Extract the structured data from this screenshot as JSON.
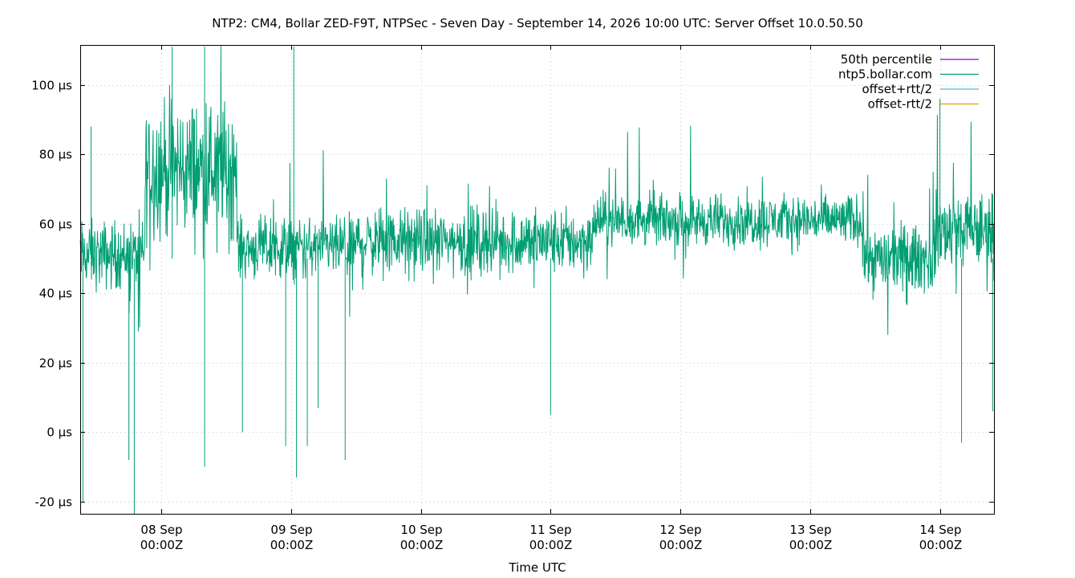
{
  "chart_data": {
    "type": "line",
    "title": "NTP2: CM4, Bollar ZED-F9T, NTPSec - Seven Day - September 14, 2026 10:00 UTC: Server Offset 10.0.50.50",
    "xlabel": "Time UTC",
    "ylabel": "",
    "ylim": [
      -23.5,
      111.5
    ],
    "xlim": [
      "2026-09-07T09:00Z",
      "2026-09-14T10:00Z"
    ],
    "grid": true,
    "legend_position": "top-right",
    "y_unit": "µs",
    "y_ticks": [
      {
        "value": -20,
        "label": "-20 µs"
      },
      {
        "value": 0,
        "label": "0 µs"
      },
      {
        "value": 20,
        "label": "20 µs"
      },
      {
        "value": 40,
        "label": "40 µs"
      },
      {
        "value": 60,
        "label": "60 µs"
      },
      {
        "value": 80,
        "label": "80 µs"
      },
      {
        "value": 100,
        "label": "100 µs"
      }
    ],
    "x_ticks": [
      {
        "day": 1,
        "label_top": "08 Sep",
        "label_bottom": "00:00Z"
      },
      {
        "day": 2,
        "label_top": "09 Sep",
        "label_bottom": "00:00Z"
      },
      {
        "day": 3,
        "label_top": "10 Sep",
        "label_bottom": "00:00Z"
      },
      {
        "day": 4,
        "label_top": "11 Sep",
        "label_bottom": "00:00Z"
      },
      {
        "day": 5,
        "label_top": "12 Sep",
        "label_bottom": "00:00Z"
      },
      {
        "day": 6,
        "label_top": "13 Sep",
        "label_bottom": "00:00Z"
      },
      {
        "day": 7,
        "label_top": "14 Sep",
        "label_bottom": "00:00Z"
      }
    ],
    "series": [
      {
        "name": "50th percentile",
        "color": "#9400d3",
        "values": []
      },
      {
        "name": "ntp5.bollar.com",
        "color": "#009e73",
        "values_description": "dense offset trace",
        "segments": [
          {
            "start": "2026-09-07T09:00Z",
            "end": "2026-09-07T21:00Z",
            "center": 51,
            "band_low": 38,
            "band_high": 63
          },
          {
            "start": "2026-09-07T21:00Z",
            "end": "2026-09-08T14:00Z",
            "center": 76,
            "band_low": 52,
            "band_high": 102
          },
          {
            "start": "2026-09-08T14:00Z",
            "end": "2026-09-09T12:00Z",
            "center": 53,
            "band_low": 42,
            "band_high": 64
          },
          {
            "start": "2026-09-09T12:00Z",
            "end": "2026-09-11T08:00Z",
            "center": 55,
            "band_low": 44,
            "band_high": 68
          },
          {
            "start": "2026-09-11T08:00Z",
            "end": "2026-09-13T10:00Z",
            "center": 61,
            "band_low": 52,
            "band_high": 71
          },
          {
            "start": "2026-09-13T10:00Z",
            "end": "2026-09-13T23:00Z",
            "center": 50,
            "band_low": 38,
            "band_high": 63
          },
          {
            "start": "2026-09-13T23:00Z",
            "end": "2026-09-14T10:00Z",
            "center": 58,
            "band_low": 45,
            "band_high": 74
          }
        ],
        "spikes": [
          {
            "time": "2026-09-07T09:30Z",
            "low": -20
          },
          {
            "time": "2026-09-07T19:00Z",
            "low": -23.5
          },
          {
            "time": "2026-09-07T18:00Z",
            "low": -8
          },
          {
            "time": "2026-09-08T08:00Z",
            "low": -10
          },
          {
            "time": "2026-09-08T15:00Z",
            "low": 0
          },
          {
            "time": "2026-09-08T23:00Z",
            "low": -4
          },
          {
            "time": "2026-09-09T01:00Z",
            "low": -13
          },
          {
            "time": "2026-09-09T03:00Z",
            "low": -4
          },
          {
            "time": "2026-09-09T05:00Z",
            "low": 7
          },
          {
            "time": "2026-09-09T10:00Z",
            "low": -8
          },
          {
            "time": "2026-09-11T00:00Z",
            "low": 5
          },
          {
            "time": "2026-09-14T04:00Z",
            "low": -3
          },
          {
            "time": "2026-09-14T09:45Z",
            "low": 6
          },
          {
            "time": "2026-09-07T11:00Z",
            "high": 88
          },
          {
            "time": "2026-09-08T02:00Z",
            "high": 111
          },
          {
            "time": "2026-09-08T08:00Z",
            "high": 111
          },
          {
            "time": "2026-09-09T00:30Z",
            "high": 111
          },
          {
            "time": "2026-09-14T00:00Z",
            "high": 96
          }
        ]
      },
      {
        "name": "offset+rtt/2",
        "color": "#56b4e9",
        "values": []
      },
      {
        "name": "offset-rtt/2",
        "color": "#e69f00",
        "values": []
      }
    ]
  }
}
